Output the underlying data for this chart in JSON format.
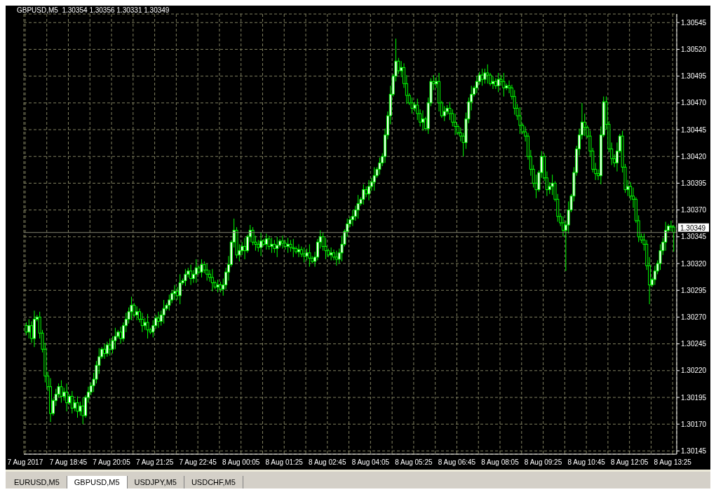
{
  "chart_data": {
    "type": "candlestick",
    "title": "GBPUSD,M5  1.30354 1.30356 1.30331 1.30349",
    "annotations": [
      "EURUSD,M5",
      "GBPUSD,M5",
      "USDJPY,M5",
      "USDCHF,M5"
    ],
    "categories": [
      "7 Aug 2017",
      null,
      null,
      null,
      null,
      null,
      null,
      null,
      null,
      null,
      null,
      null,
      null,
      null,
      null,
      null,
      "7 Aug 18:45",
      null,
      null,
      null,
      null,
      null,
      null,
      null,
      null,
      null,
      null,
      null,
      null,
      null,
      null,
      null,
      "7 Aug 20:05",
      null,
      null,
      null,
      null,
      null,
      null,
      null,
      null,
      null,
      null,
      null,
      null,
      null,
      null,
      null,
      "7 Aug 21:25",
      null,
      null,
      null,
      null,
      null,
      null,
      null,
      null,
      null,
      null,
      null,
      null,
      null,
      null,
      null,
      "7 Aug 22:45",
      null,
      null,
      null,
      null,
      null,
      null,
      null,
      null,
      null,
      null,
      null,
      null,
      null,
      null,
      null,
      "8 Aug 00:05",
      null,
      null,
      null,
      null,
      null,
      null,
      null,
      null,
      null,
      null,
      null,
      null,
      null,
      null,
      null,
      "8 Aug 01:25",
      null,
      null,
      null,
      null,
      null,
      null,
      null,
      null,
      null,
      null,
      null,
      null,
      null,
      null,
      null,
      "8 Aug 02:45",
      null,
      null,
      null,
      null,
      null,
      null,
      null,
      null,
      null,
      null,
      null,
      null,
      null,
      null,
      null,
      "8 Aug 04:05",
      null,
      null,
      null,
      null,
      null,
      null,
      null,
      null,
      null,
      null,
      null,
      null,
      null,
      null,
      null,
      "8 Aug 05:25",
      null,
      null,
      null,
      null,
      null,
      null,
      null,
      null,
      null,
      null,
      null,
      null,
      null,
      null,
      null,
      "8 Aug 06:45",
      null,
      null,
      null,
      null,
      null,
      null,
      null,
      null,
      null,
      null,
      null,
      null,
      null,
      null,
      null,
      "8 Aug 08:05",
      null,
      null,
      null,
      null,
      null,
      null,
      null,
      null,
      null,
      null,
      null,
      null,
      null,
      null,
      null,
      "8 Aug 09:25",
      null,
      null,
      null,
      null,
      null,
      null,
      null,
      null,
      null,
      null,
      null,
      null,
      null,
      null,
      null,
      "8 Aug 10:45",
      null,
      null,
      null,
      null,
      null,
      null,
      null,
      null,
      null,
      null,
      null,
      null,
      null,
      null,
      null,
      "8 Aug 12:05",
      null,
      null,
      null,
      null,
      null,
      null,
      null,
      null,
      null,
      null,
      null,
      null,
      null,
      null,
      null,
      "8 Aug 13:25"
    ],
    "series": [
      {
        "color": "#00ff00",
        "ohlc": [
          [
            1.30262,
            1.30265,
            1.30253,
            1.30256
          ],
          [
            1.30256,
            1.30268,
            1.3025,
            1.30262
          ],
          [
            1.30262,
            1.30266,
            1.30246,
            1.3025
          ],
          [
            1.3025,
            1.30276,
            1.30242,
            1.30268
          ],
          [
            1.30268,
            1.30272,
            1.30266,
            1.3027
          ],
          [
            1.3027,
            1.30275,
            1.3025,
            1.30255
          ],
          [
            1.30255,
            1.30258,
            1.30237,
            1.3024
          ],
          [
            1.3024,
            1.30246,
            1.30209,
            1.30215
          ],
          [
            1.30215,
            1.30219,
            1.30201,
            1.30205
          ],
          [
            1.30205,
            1.30213,
            1.30172,
            1.3018
          ],
          [
            1.3018,
            1.30194,
            1.30178,
            1.30192
          ],
          [
            1.30192,
            1.30203,
            1.30187,
            1.30198
          ],
          [
            1.30198,
            1.30208,
            1.30195,
            1.30205
          ],
          [
            1.30205,
            1.30211,
            1.3019,
            1.30196
          ],
          [
            1.30196,
            1.30204,
            1.30192,
            1.302
          ],
          [
            1.302,
            1.30208,
            1.30182,
            1.3019
          ],
          [
            1.3019,
            1.30198,
            1.30188,
            1.30196
          ],
          [
            1.30196,
            1.30201,
            1.3018,
            1.30185
          ],
          [
            1.30185,
            1.30193,
            1.30182,
            1.3019
          ],
          [
            1.3019,
            1.30196,
            1.30176,
            1.30182
          ],
          [
            1.30182,
            1.30191,
            1.30178,
            1.30187
          ],
          [
            1.30187,
            1.30195,
            1.3017,
            1.30178
          ],
          [
            1.30178,
            1.30197,
            1.30176,
            1.30195
          ],
          [
            1.30195,
            1.30205,
            1.3019,
            1.302
          ],
          [
            1.302,
            1.30209,
            1.30197,
            1.30206
          ],
          [
            1.30206,
            1.30218,
            1.302,
            1.30212
          ],
          [
            1.30212,
            1.30229,
            1.30208,
            1.30225
          ],
          [
            1.30225,
            1.30241,
            1.30217,
            1.30233
          ],
          [
            1.30233,
            1.30242,
            1.30231,
            1.3024
          ],
          [
            1.3024,
            1.30245,
            1.30231,
            1.30236
          ],
          [
            1.30236,
            1.30247,
            1.30233,
            1.30244
          ],
          [
            1.30244,
            1.3025,
            1.30234,
            1.3024
          ],
          [
            1.3024,
            1.30252,
            1.30236,
            1.30248
          ],
          [
            1.30248,
            1.3026,
            1.3024,
            1.30252
          ],
          [
            1.30252,
            1.30258,
            1.3025,
            1.30256
          ],
          [
            1.30256,
            1.30261,
            1.30245,
            1.3025
          ],
          [
            1.3025,
            1.30265,
            1.30247,
            1.30262
          ],
          [
            1.30262,
            1.30274,
            1.30256,
            1.30268
          ],
          [
            1.30268,
            1.30279,
            1.30264,
            1.30275
          ],
          [
            1.30275,
            1.30289,
            1.30267,
            1.30281
          ],
          [
            1.30281,
            1.30283,
            1.3027,
            1.30272
          ],
          [
            1.30272,
            1.3028,
            1.30267,
            1.30275
          ],
          [
            1.30275,
            1.30278,
            1.30265,
            1.30268
          ],
          [
            1.30268,
            1.30274,
            1.30256,
            1.30262
          ],
          [
            1.30262,
            1.30269,
            1.30258,
            1.30265
          ],
          [
            1.30265,
            1.30273,
            1.3025,
            1.30258
          ],
          [
            1.30258,
            1.3026,
            1.30254,
            1.30256
          ],
          [
            1.30256,
            1.30267,
            1.30251,
            1.30262
          ],
          [
            1.30262,
            1.30272,
            1.30259,
            1.30269
          ],
          [
            1.30269,
            1.30275,
            1.3026,
            1.30266
          ],
          [
            1.30266,
            1.30276,
            1.30262,
            1.30272
          ],
          [
            1.30272,
            1.30286,
            1.30264,
            1.30278
          ],
          [
            1.30278,
            1.30283,
            1.30276,
            1.30281
          ],
          [
            1.30281,
            1.30291,
            1.30276,
            1.30286
          ],
          [
            1.30286,
            1.30295,
            1.30283,
            1.30292
          ],
          [
            1.30292,
            1.303,
            1.30286,
            1.30294
          ],
          [
            1.30294,
            1.30298,
            1.30286,
            1.3029
          ],
          [
            1.3029,
            1.3031,
            1.30282,
            1.30302
          ],
          [
            1.30302,
            1.30306,
            1.303,
            1.30304
          ],
          [
            1.30304,
            1.30315,
            1.30299,
            1.3031
          ],
          [
            1.3031,
            1.30316,
            1.30307,
            1.30313
          ],
          [
            1.30313,
            1.30319,
            1.303,
            1.30306
          ],
          [
            1.30306,
            1.30314,
            1.30302,
            1.3031
          ],
          [
            1.3031,
            1.30324,
            1.30302,
            1.30316
          ],
          [
            1.30316,
            1.30318,
            1.3031,
            1.30312
          ],
          [
            1.30312,
            1.30324,
            1.30307,
            1.30319
          ],
          [
            1.30319,
            1.30322,
            1.30311,
            1.30314
          ],
          [
            1.30314,
            1.3032,
            1.30304,
            1.3031
          ],
          [
            1.3031,
            1.30314,
            1.30303,
            1.30307
          ],
          [
            1.30307,
            1.30315,
            1.30294,
            1.30302
          ],
          [
            1.30302,
            1.30304,
            1.30296,
            1.30298
          ],
          [
            1.30298,
            1.30305,
            1.30293,
            1.303
          ],
          [
            1.303,
            1.30303,
            1.30293,
            1.30296
          ],
          [
            1.30296,
            1.30306,
            1.3029,
            1.303
          ],
          [
            1.303,
            1.30316,
            1.30296,
            1.30312
          ],
          [
            1.30312,
            1.30327,
            1.30304,
            1.30319
          ],
          [
            1.30319,
            1.30342,
            1.30317,
            1.3034
          ],
          [
            1.3034,
            1.30362,
            1.30335,
            1.30351
          ],
          [
            1.30351,
            1.30354,
            1.30325,
            1.30328
          ],
          [
            1.30328,
            1.30338,
            1.30322,
            1.30332
          ],
          [
            1.30332,
            1.3034,
            1.30328,
            1.30336
          ],
          [
            1.30336,
            1.30344,
            1.30324,
            1.30332
          ],
          [
            1.30332,
            1.30347,
            1.3033,
            1.30345
          ],
          [
            1.30345,
            1.30356,
            1.3034,
            1.30351
          ],
          [
            1.30351,
            1.30354,
            1.30337,
            1.3034
          ],
          [
            1.3034,
            1.30346,
            1.30332,
            1.30338
          ],
          [
            1.30338,
            1.30342,
            1.30331,
            1.30335
          ],
          [
            1.30335,
            1.30349,
            1.30327,
            1.30341
          ],
          [
            1.30341,
            1.30343,
            1.30336,
            1.30338
          ],
          [
            1.30338,
            1.30348,
            1.30333,
            1.30343
          ],
          [
            1.30343,
            1.30346,
            1.30333,
            1.30336
          ],
          [
            1.30336,
            1.30344,
            1.3033,
            1.30338
          ],
          [
            1.30338,
            1.30342,
            1.3033,
            1.30334
          ],
          [
            1.30334,
            1.30345,
            1.30326,
            1.30337
          ],
          [
            1.30337,
            1.30343,
            1.30335,
            1.30341
          ],
          [
            1.30341,
            1.30346,
            1.30334,
            1.30339
          ],
          [
            1.30339,
            1.30342,
            1.30333,
            1.30336
          ],
          [
            1.30336,
            1.30344,
            1.3033,
            1.30338
          ],
          [
            1.30338,
            1.30342,
            1.30331,
            1.30335
          ],
          [
            1.30335,
            1.30343,
            1.30326,
            1.30334
          ],
          [
            1.30334,
            1.30336,
            1.30329,
            1.30331
          ],
          [
            1.30331,
            1.30338,
            1.30326,
            1.30333
          ],
          [
            1.30333,
            1.30336,
            1.30326,
            1.30329
          ],
          [
            1.30329,
            1.30335,
            1.30321,
            1.30327
          ],
          [
            1.30327,
            1.30334,
            1.30323,
            1.3033
          ],
          [
            1.3033,
            1.30338,
            1.30317,
            1.30325
          ],
          [
            1.30325,
            1.30327,
            1.3032,
            1.30322
          ],
          [
            1.30322,
            1.30331,
            1.30317,
            1.30326
          ],
          [
            1.30326,
            1.30343,
            1.30323,
            1.3034
          ],
          [
            1.3034,
            1.30351,
            1.30334,
            1.30345
          ],
          [
            1.30345,
            1.30349,
            1.30332,
            1.30336
          ],
          [
            1.30336,
            1.30344,
            1.30324,
            1.30332
          ],
          [
            1.30332,
            1.30334,
            1.30326,
            1.30328
          ],
          [
            1.30328,
            1.30335,
            1.30323,
            1.3033
          ],
          [
            1.3033,
            1.30333,
            1.30323,
            1.30326
          ],
          [
            1.30326,
            1.30332,
            1.30318,
            1.30324
          ],
          [
            1.30324,
            1.30334,
            1.3032,
            1.3033
          ],
          [
            1.3033,
            1.30346,
            1.30322,
            1.30338
          ],
          [
            1.30338,
            1.30352,
            1.30336,
            1.3035
          ],
          [
            1.3035,
            1.30362,
            1.30345,
            1.30357
          ],
          [
            1.30357,
            1.30364,
            1.30354,
            1.30361
          ],
          [
            1.30361,
            1.3037,
            1.30355,
            1.30364
          ],
          [
            1.30364,
            1.30374,
            1.3036,
            1.3037
          ],
          [
            1.3037,
            1.30384,
            1.30362,
            1.30376
          ],
          [
            1.30376,
            1.30382,
            1.30374,
            1.3038
          ],
          [
            1.3038,
            1.30394,
            1.30375,
            1.30389
          ],
          [
            1.30389,
            1.30392,
            1.30382,
            1.30385
          ],
          [
            1.30385,
            1.30398,
            1.30379,
            1.30392
          ],
          [
            1.30392,
            1.304,
            1.30388,
            1.30396
          ],
          [
            1.30396,
            1.3041,
            1.30388,
            1.30402
          ],
          [
            1.30402,
            1.3041,
            1.304,
            1.30408
          ],
          [
            1.30408,
            1.30419,
            1.30403,
            1.30414
          ],
          [
            1.30414,
            1.30423,
            1.30411,
            1.3042
          ],
          [
            1.3042,
            1.30446,
            1.30414,
            1.3044
          ],
          [
            1.3044,
            1.30462,
            1.30436,
            1.30458
          ],
          [
            1.30458,
            1.30486,
            1.3045,
            1.30478
          ],
          [
            1.30478,
            1.30497,
            1.30476,
            1.30495
          ],
          [
            1.30495,
            1.3053,
            1.3049,
            1.30509
          ],
          [
            1.30509,
            1.30512,
            1.30497,
            1.305
          ],
          [
            1.305,
            1.30509,
            1.30494,
            1.30503
          ],
          [
            1.30503,
            1.30507,
            1.30484,
            1.30488
          ],
          [
            1.30488,
            1.30496,
            1.30469,
            1.30477
          ],
          [
            1.30477,
            1.30479,
            1.30468,
            1.3047
          ],
          [
            1.3047,
            1.30475,
            1.3046,
            1.30465
          ],
          [
            1.30465,
            1.30471,
            1.30462,
            1.30468
          ],
          [
            1.30468,
            1.30474,
            1.30454,
            1.3046
          ],
          [
            1.3046,
            1.30464,
            1.30448,
            1.30452
          ],
          [
            1.30452,
            1.30463,
            1.30444,
            1.30455
          ],
          [
            1.30455,
            1.30457,
            1.30444,
            1.30446
          ],
          [
            1.30446,
            1.30475,
            1.30441,
            1.3047
          ],
          [
            1.3047,
            1.30493,
            1.30467,
            1.3049
          ],
          [
            1.3049,
            1.30496,
            1.30482,
            1.30488
          ],
          [
            1.30488,
            1.30494,
            1.30484,
            1.3049
          ],
          [
            1.3049,
            1.30498,
            1.30462,
            1.3047
          ],
          [
            1.3047,
            1.30472,
            1.30456,
            1.30458
          ],
          [
            1.30458,
            1.30467,
            1.30453,
            1.30462
          ],
          [
            1.30462,
            1.30468,
            1.30459,
            1.30465
          ],
          [
            1.30465,
            1.30471,
            1.30454,
            1.3046
          ],
          [
            1.3046,
            1.30464,
            1.30448,
            1.30452
          ],
          [
            1.30452,
            1.3046,
            1.3044,
            1.30448
          ],
          [
            1.30448,
            1.3045,
            1.3044,
            1.30442
          ],
          [
            1.30442,
            1.30447,
            1.30434,
            1.30439
          ],
          [
            1.30439,
            1.30442,
            1.3042,
            1.30433
          ],
          [
            1.30433,
            1.30461,
            1.30427,
            1.30455
          ],
          [
            1.30455,
            1.30475,
            1.30451,
            1.30471
          ],
          [
            1.30471,
            1.30486,
            1.30463,
            1.30478
          ],
          [
            1.30478,
            1.30486,
            1.30476,
            1.30484
          ],
          [
            1.30484,
            1.30495,
            1.30479,
            1.3049
          ],
          [
            1.3049,
            1.30499,
            1.30487,
            1.30496
          ],
          [
            1.30496,
            1.30502,
            1.30486,
            1.30492
          ],
          [
            1.30492,
            1.30502,
            1.30488,
            1.30498
          ],
          [
            1.30498,
            1.30506,
            1.30488,
            1.30496
          ],
          [
            1.30496,
            1.30498,
            1.30486,
            1.30488
          ],
          [
            1.30488,
            1.30495,
            1.30483,
            1.3049
          ],
          [
            1.3049,
            1.30493,
            1.30483,
            1.30486
          ],
          [
            1.30486,
            1.30498,
            1.3048,
            1.30492
          ],
          [
            1.30492,
            1.30496,
            1.30486,
            1.3049
          ],
          [
            1.3049,
            1.30498,
            1.30476,
            1.30484
          ],
          [
            1.30484,
            1.30488,
            1.30482,
            1.30486
          ],
          [
            1.30486,
            1.30491,
            1.30479,
            1.30484
          ],
          [
            1.30484,
            1.30487,
            1.30473,
            1.30476
          ],
          [
            1.30476,
            1.30482,
            1.30459,
            1.30465
          ],
          [
            1.30465,
            1.30469,
            1.30454,
            1.30458
          ],
          [
            1.30458,
            1.30466,
            1.30441,
            1.30449
          ],
          [
            1.30449,
            1.30451,
            1.30441,
            1.30443
          ],
          [
            1.30443,
            1.30448,
            1.30434,
            1.30439
          ],
          [
            1.30439,
            1.30442,
            1.30417,
            1.3042
          ],
          [
            1.3042,
            1.30426,
            1.30402,
            1.30408
          ],
          [
            1.30408,
            1.30412,
            1.30391,
            1.30395
          ],
          [
            1.30395,
            1.30403,
            1.30381,
            1.30389
          ],
          [
            1.30389,
            1.30407,
            1.30387,
            1.30405
          ],
          [
            1.30405,
            1.30425,
            1.304,
            1.3042
          ],
          [
            1.3042,
            1.30423,
            1.30397,
            1.304
          ],
          [
            1.304,
            1.30406,
            1.30383,
            1.30389
          ],
          [
            1.30389,
            1.30396,
            1.30385,
            1.30392
          ],
          [
            1.30392,
            1.30403,
            1.30384,
            1.30395
          ],
          [
            1.30395,
            1.30397,
            1.30378,
            1.3038
          ],
          [
            1.3038,
            1.30385,
            1.30359,
            1.30364
          ],
          [
            1.30364,
            1.30367,
            1.30355,
            1.30358
          ],
          [
            1.30358,
            1.30364,
            1.30345,
            1.30351
          ],
          [
            1.30351,
            1.3036,
            1.30313,
            1.30356
          ],
          [
            1.30356,
            1.30378,
            1.30348,
            1.3037
          ],
          [
            1.3037,
            1.30385,
            1.30368,
            1.30383
          ],
          [
            1.30383,
            1.3041,
            1.30378,
            1.30405
          ],
          [
            1.30405,
            1.3043,
            1.30402,
            1.30427
          ],
          [
            1.30427,
            1.30446,
            1.30421,
            1.3044
          ],
          [
            1.3044,
            1.3047,
            1.30436,
            1.30452
          ],
          [
            1.30452,
            1.3046,
            1.30439,
            1.30447
          ],
          [
            1.30447,
            1.30449,
            1.30437,
            1.30439
          ],
          [
            1.30439,
            1.30444,
            1.3042,
            1.30425
          ],
          [
            1.30425,
            1.30428,
            1.30405,
            1.30408
          ],
          [
            1.30408,
            1.30414,
            1.30398,
            1.30404
          ],
          [
            1.30404,
            1.30408,
            1.30398,
            1.30402
          ],
          [
            1.30402,
            1.30448,
            1.30394,
            1.3044
          ],
          [
            1.3044,
            1.30476,
            1.30438,
            1.30471
          ],
          [
            1.30471,
            1.30476,
            1.30445,
            1.3045
          ],
          [
            1.3045,
            1.30453,
            1.30424,
            1.30427
          ],
          [
            1.30427,
            1.30433,
            1.30412,
            1.30418
          ],
          [
            1.30418,
            1.30422,
            1.3041,
            1.30414
          ],
          [
            1.30414,
            1.30433,
            1.30406,
            1.30425
          ],
          [
            1.30425,
            1.30441,
            1.30423,
            1.30439
          ],
          [
            1.30439,
            1.30444,
            1.30405,
            1.3041
          ],
          [
            1.3041,
            1.30413,
            1.30386,
            1.30389
          ],
          [
            1.30389,
            1.30398,
            1.30383,
            1.30392
          ],
          [
            1.30392,
            1.30396,
            1.30379,
            1.30383
          ],
          [
            1.30383,
            1.30391,
            1.30372,
            1.3038
          ],
          [
            1.3038,
            1.30382,
            1.30358,
            1.3036
          ],
          [
            1.3036,
            1.30365,
            1.3034,
            1.30345
          ],
          [
            1.30345,
            1.30348,
            1.30339,
            1.30342
          ],
          [
            1.30342,
            1.30348,
            1.30332,
            1.30338
          ],
          [
            1.30338,
            1.30342,
            1.30314,
            1.30318
          ],
          [
            1.30318,
            1.30326,
            1.30282,
            1.303
          ],
          [
            1.303,
            1.30307,
            1.30298,
            1.30305
          ],
          [
            1.30305,
            1.30318,
            1.303,
            1.30313
          ],
          [
            1.30313,
            1.30323,
            1.3031,
            1.3032
          ],
          [
            1.3032,
            1.30338,
            1.30314,
            1.30332
          ],
          [
            1.30332,
            1.30344,
            1.30328,
            1.3034
          ],
          [
            1.3034,
            1.30359,
            1.30332,
            1.30351
          ],
          [
            1.30351,
            1.30357,
            1.30349,
            1.30355
          ],
          [
            1.30355,
            1.3036,
            1.3035,
            1.30354
          ],
          [
            1.30354,
            1.30356,
            1.30331,
            1.30349
          ]
        ]
      }
    ],
    "ylim": [
      1.30142,
      1.30553
    ],
    "yticks": [
      1.30145,
      {
        "value": 1.3017,
        "label": "1.30170"
      },
      1.30195,
      {
        "value": 1.3022,
        "label": "1.30220"
      },
      1.30245,
      {
        "value": 1.3027,
        "label": "1.30270"
      },
      1.30295,
      {
        "value": 1.3032,
        "label": "1.30320"
      },
      1.30345,
      {
        "value": 1.3037,
        "label": "1.30370"
      },
      1.30395,
      {
        "value": 1.3042,
        "label": "1.30420"
      },
      1.30445,
      {
        "value": 1.3047,
        "label": "1.30470"
      },
      1.30495,
      {
        "value": 1.3052,
        "label": "1.30520"
      },
      1.30545
    ],
    "ref_lines": [
      {
        "axis": "y",
        "value": 1.30349,
        "label": "1.30349",
        "color": "#808070"
      }
    ],
    "grid": true
  }
}
